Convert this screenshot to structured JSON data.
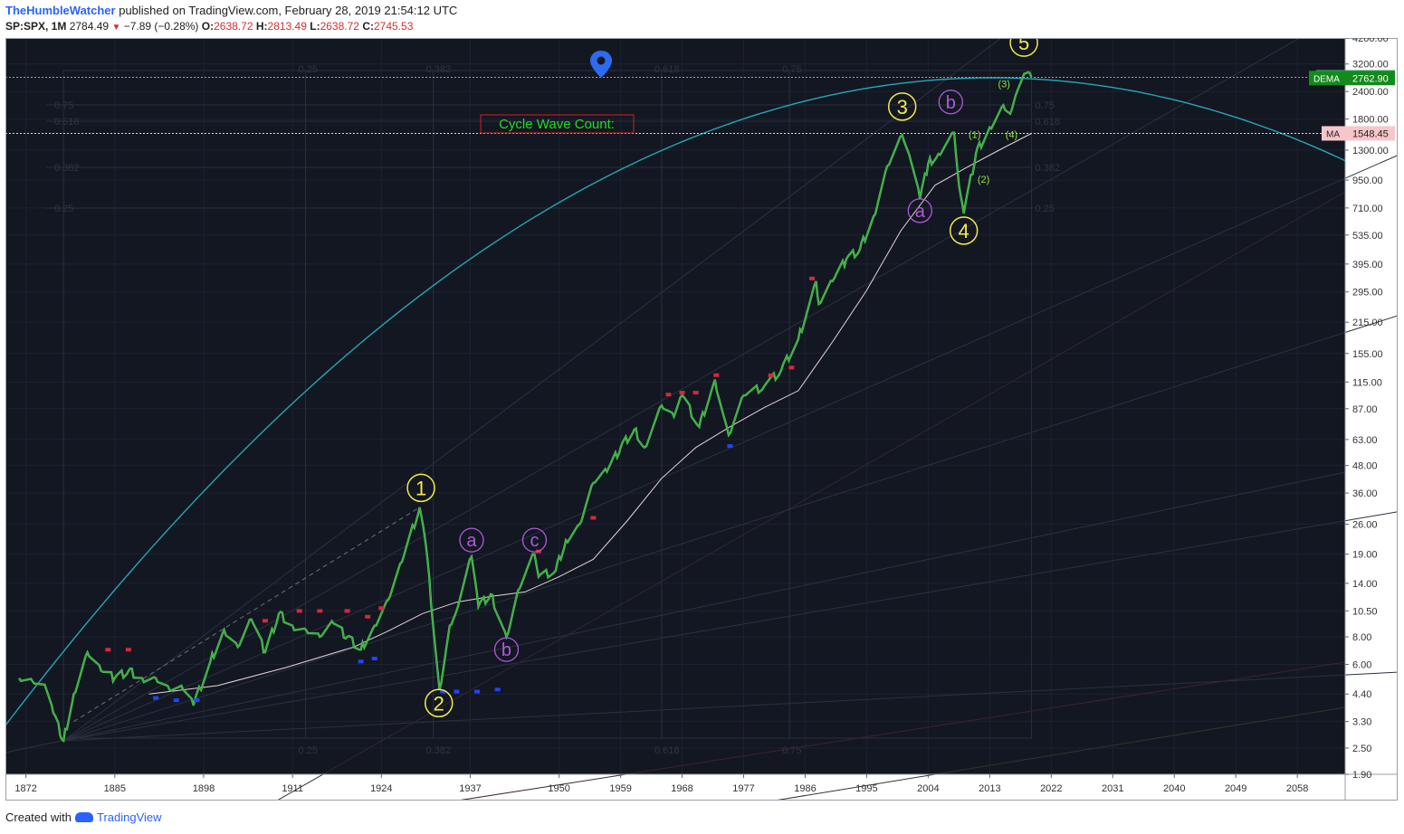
{
  "header": {
    "author": "TheHumbleWatcher",
    "published": "published on TradingView.com, February 28, 2019 21:54:12 UTC",
    "symbol": "SP:SPX, 1M",
    "price": "2784.49",
    "change": "−7.89 (−0.28%)",
    "open_label": "O:",
    "open": "2638.72",
    "high_label": "H:",
    "high": "2813.49",
    "low_label": "L:",
    "low": "2638.72",
    "close_label": "C:",
    "close": "2745.53"
  },
  "footer": {
    "created_with": "Created with",
    "brand": "TradingView"
  },
  "colors": {
    "background": "#131722",
    "price_line": "#3ec94f",
    "ma_line": "#e8d3d6",
    "parabola": "#26a6b5",
    "primary_label": "#f5e94a",
    "correction_label": "#b05bd8",
    "minor_label": "#8fe34a",
    "red_marker": "#d6283c",
    "blue_marker": "#2244ff"
  },
  "annotation": {
    "text": "Cycle Wave Count:"
  },
  "chart_data": {
    "type": "line",
    "title": "",
    "x_ticks": [
      "1872",
      "1885",
      "1898",
      "1911",
      "1924",
      "1937",
      "1950",
      "1959",
      "1968",
      "1977",
      "1986",
      "1995",
      "2004",
      "2013",
      "2022",
      "2031",
      "2040",
      "2049",
      "2058"
    ],
    "y_ticks": [
      "4200.00",
      "3200.00",
      "2400.00",
      "1800.00",
      "1300.00",
      "950.00",
      "710.00",
      "535.00",
      "395.00",
      "295.00",
      "215.00",
      "155.00",
      "115.00",
      "87.00",
      "63.00",
      "48.00",
      "36.00",
      "26.00",
      "19.00",
      "14.00",
      "10.50",
      "8.00",
      "6.00",
      "4.40",
      "3.30",
      "2.50",
      "1.90"
    ],
    "y_scale": "log",
    "xlim": [
      1869,
      2065
    ],
    "ylim": [
      1.9,
      4200
    ],
    "fib_labels_top": [
      "0.25",
      "0.382",
      "0.618",
      "0.75"
    ],
    "fib_labels_bottom": [
      "0.25",
      "0.382",
      "0.618",
      "0.75"
    ],
    "fib_labels_left": [
      "0.75",
      "0.618",
      "0.382",
      "0.25"
    ],
    "fib_labels_right": [
      "0.75",
      "0.618",
      "0.382",
      "0.25"
    ],
    "series": [
      {
        "name": "SPX",
        "x": [
          1871,
          1873,
          1875,
          1876,
          1877.5,
          1879,
          1881,
          1883,
          1885,
          1887,
          1889,
          1891,
          1893,
          1895,
          1896.5,
          1899,
          1901,
          1903,
          1905,
          1907,
          1909,
          1911,
          1913,
          1915,
          1917,
          1919,
          1921,
          1923,
          1925,
          1927,
          1929.6,
          1930.5,
          1932.5,
          1934,
          1935,
          1937.2,
          1938.2,
          1940,
          1942.3,
          1944,
          1946.4,
          1947,
          1949.5,
          1951,
          1953,
          1955,
          1957,
          1959,
          1961,
          1962.5,
          1965,
          1966.8,
          1968,
          1970.5,
          1972.8,
          1974.8,
          1977,
          1980,
          1982.5,
          1985,
          1987.6,
          1988,
          1990,
          1992,
          1994,
          1996,
          1998,
          2000.2,
          2001.5,
          2002.8,
          2004,
          2005.5,
          2007.8,
          2008.5,
          2009.2,
          2011,
          2013,
          2015,
          2016,
          2017,
          2018.3,
          2019.1
        ],
        "values": [
          5.2,
          5.0,
          4.6,
          3.6,
          2.7,
          4.4,
          6.8,
          5.6,
          5.2,
          5.6,
          5.2,
          5.2,
          4.6,
          4.6,
          3.9,
          6.2,
          8.6,
          7.2,
          9.6,
          6.8,
          10.2,
          9.0,
          8.6,
          8.0,
          9.2,
          8.0,
          7.0,
          9.0,
          11.8,
          17.5,
          31.0,
          21.0,
          4.6,
          9.0,
          10.5,
          18.5,
          11.0,
          12.5,
          8.0,
          13.0,
          19.0,
          15.0,
          16.0,
          22.0,
          26.0,
          40.0,
          45.0,
          58.0,
          70.0,
          58.0,
          90.0,
          80.0,
          100.0,
          72.0,
          118.0,
          66.0,
          100.0,
          110.0,
          130.0,
          180.0,
          330.0,
          260.0,
          330.0,
          415.0,
          460.0,
          650.0,
          1100.0,
          1520.0,
          1150.0,
          780.0,
          1130.0,
          1250.0,
          1560.0,
          900.0,
          670.0,
          1260.0,
          1650.0,
          2080.0,
          1900.0,
          2400.0,
          2900.0,
          2784.49
        ]
      },
      {
        "name": "MA",
        "x": [
          1890,
          1900,
          1910,
          1920,
          1925,
          1930,
          1935,
          1940,
          1945,
          1950,
          1955,
          1960,
          1965,
          1970,
          1975,
          1980,
          1985,
          1990,
          1995,
          2000,
          2005,
          2010,
          2015,
          2019.1
        ],
        "values": [
          4.4,
          4.8,
          5.8,
          7.2,
          8.5,
          10.2,
          11.5,
          12.2,
          12.8,
          15.0,
          18.0,
          27.0,
          42.0,
          58.0,
          72.0,
          88.0,
          105.0,
          175.0,
          300.0,
          560.0,
          900.0,
          1100.0,
          1330.0,
          1548.45
        ]
      }
    ],
    "price_tags": [
      {
        "label": "SPX",
        "value": "2784.49",
        "color": "#4caf7d"
      },
      {
        "label": "DEMA",
        "value": "2762.90",
        "color": "#138a1c"
      },
      {
        "label": "MA",
        "value": "1548.45",
        "color": "#f7c6ca"
      }
    ],
    "wave_labels": [
      {
        "text": "1",
        "x": 1929.8,
        "y": 38,
        "style": "primary"
      },
      {
        "text": "2",
        "x": 1932.4,
        "y": 4.0,
        "style": "primary"
      },
      {
        "text": "3",
        "x": 2000.2,
        "y": 2050,
        "style": "primary"
      },
      {
        "text": "4",
        "x": 2009.2,
        "y": 560,
        "style": "primary"
      },
      {
        "text": "5",
        "x": 2018.0,
        "y": 4000,
        "style": "primary"
      },
      {
        "text": "a",
        "x": 1937.2,
        "y": 22,
        "style": "correction"
      },
      {
        "text": "b",
        "x": 1942.3,
        "y": 7.0,
        "style": "correction"
      },
      {
        "text": "c",
        "x": 1946.4,
        "y": 22,
        "style": "correction"
      },
      {
        "text": "a",
        "x": 2002.8,
        "y": 690,
        "style": "correction"
      },
      {
        "text": "b",
        "x": 2007.3,
        "y": 2150,
        "style": "correction"
      },
      {
        "text": "(1)",
        "x": 2010.8,
        "y": 1530,
        "style": "minor"
      },
      {
        "text": "(2)",
        "x": 2012.1,
        "y": 960,
        "style": "minor"
      },
      {
        "text": "(3)",
        "x": 2015.1,
        "y": 2600,
        "style": "minor"
      },
      {
        "text": "(4)",
        "x": 2016.2,
        "y": 1530,
        "style": "minor"
      }
    ]
  }
}
